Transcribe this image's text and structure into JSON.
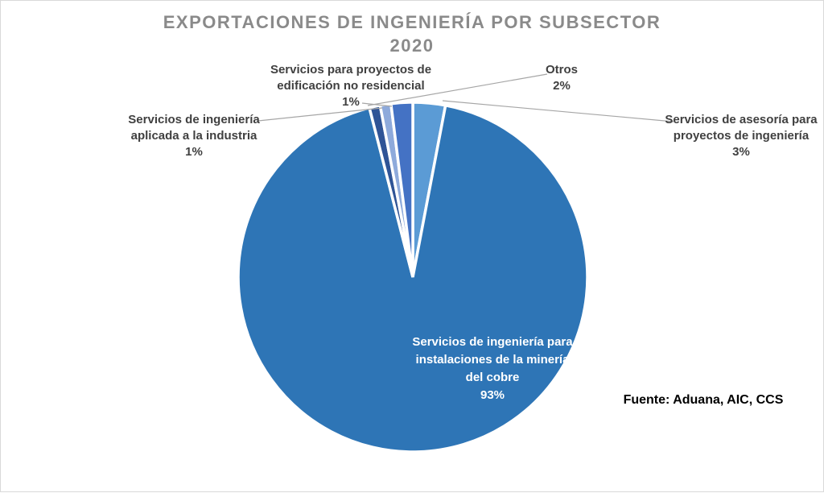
{
  "title": {
    "line1": "EXPORTACIONES DE INGENIERÍA POR SUBSECTOR",
    "line2": "2020"
  },
  "source_note": "Fuente: Aduana, AIC, CCS",
  "chart_data": {
    "type": "pie",
    "title": "EXPORTACIONES DE INGENIERÍA POR SUBSECTOR 2020",
    "unit": "percent",
    "start_angle_deg": 0,
    "direction": "clockwise",
    "legend": "none",
    "slices": [
      {
        "label": "Servicios de asesoría para proyectos de ingeniería",
        "value": 3,
        "color": "#5B9BD5"
      },
      {
        "label": "Servicios de ingeniería para instalaciones de la minería del cobre",
        "value": 93,
        "color": "#2E75B6"
      },
      {
        "label": "Servicios de ingeniería aplicada a la industria",
        "value": 1,
        "color": "#2F5496"
      },
      {
        "label": "Servicios para proyectos de edificación no residencial",
        "value": 1,
        "color": "#8EAADB"
      },
      {
        "label": "Otros",
        "value": 2,
        "color": "#4472C4"
      }
    ]
  },
  "labels": {
    "edificacion": {
      "line1": "Servicios para proyectos de",
      "line2": "edificación no residencial",
      "pct": "1%"
    },
    "otros": {
      "line1": "Otros",
      "pct": "2%"
    },
    "industria": {
      "line1": "Servicios de ingeniería",
      "line2": "aplicada a la industria",
      "pct": "1%"
    },
    "asesoria": {
      "line1": "Servicios de asesoría para",
      "line2": "proyectos de ingeniería",
      "pct": "3%"
    },
    "cobre": {
      "line1": "Servicios de ingeniería para",
      "line2": "instalaciones de la minería",
      "line3": "del cobre",
      "pct": "93%"
    }
  }
}
